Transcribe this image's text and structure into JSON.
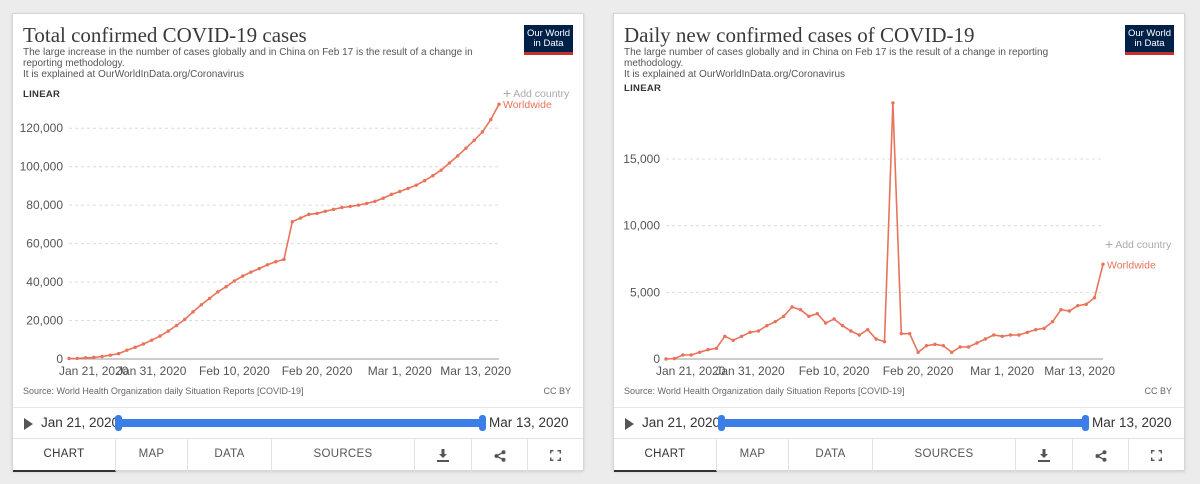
{
  "colors": {
    "line": "#e8735a",
    "accent": "#3c7ee8",
    "logo_bg": "#002147",
    "logo_bar": "#c8302e"
  },
  "logo": {
    "line1": "Our World",
    "line2": "in Data"
  },
  "left": {
    "title": "Total confirmed COVID-19 cases",
    "subtitle": "The large increase in the number of cases globally and in China on Feb 17 is the result of a change in reporting methodology.",
    "subtitle2": "It is explained at OurWorldInData.org/Coronavirus",
    "scale": "LINEAR",
    "add_country": "Add country",
    "source": "Source: World Health Organization daily Situation Reports [COVID-19]",
    "license": "CC BY",
    "timeline": {
      "start": "Jan 21, 2020",
      "end": "Mar 13, 2020"
    },
    "tabs": [
      "CHART",
      "MAP",
      "DATA",
      "SOURCES"
    ],
    "icons": [
      "download-icon",
      "share-icon",
      "fullscreen-icon"
    ]
  },
  "right": {
    "title": "Daily new confirmed cases of COVID-19",
    "subtitle": "The large number of cases globally and in China on Feb 17 is the result of a change in reporting methodology.",
    "subtitle2": "It is explained at OurWorldInData.org/Coronavirus",
    "scale": "LINEAR",
    "add_country": "Add country",
    "source": "Source: World Health Organization daily Situation Reports [COVID-19]",
    "license": "CC BY",
    "timeline": {
      "start": "Jan 21, 2020",
      "end": "Mar 13, 2020"
    },
    "tabs": [
      "CHART",
      "MAP",
      "DATA",
      "SOURCES"
    ],
    "icons": [
      "download-icon",
      "share-icon",
      "fullscreen-icon"
    ]
  },
  "chart_data": [
    {
      "type": "line",
      "x_ticks": [
        "Jan 21, 2020",
        "Jan 31, 2020",
        "Feb 10, 2020",
        "Feb 20, 2020",
        "Mar 1, 2020",
        "Mar 13, 2020"
      ],
      "x_tick_days": [
        0,
        10,
        20,
        30,
        40,
        52
      ],
      "y_ticks": [
        0,
        20000,
        40000,
        60000,
        80000,
        100000,
        120000
      ],
      "y_tick_labels": [
        "0",
        "20,000",
        "40,000",
        "60,000",
        "80,000",
        "100,000",
        "120,000"
      ],
      "ylim": [
        0,
        130000
      ],
      "grid": true,
      "series": [
        {
          "name": "Worldwide",
          "x": [
            "Jan 21, 2020",
            "Jan 22, 2020",
            "Jan 23, 2020",
            "Jan 24, 2020",
            "Jan 25, 2020",
            "Jan 26, 2020",
            "Jan 27, 2020",
            "Jan 28, 2020",
            "Jan 29, 2020",
            "Jan 30, 2020",
            "Jan 31, 2020",
            "Feb 1, 2020",
            "Feb 2, 2020",
            "Feb 3, 2020",
            "Feb 4, 2020",
            "Feb 5, 2020",
            "Feb 6, 2020",
            "Feb 7, 2020",
            "Feb 8, 2020",
            "Feb 9, 2020",
            "Feb 10, 2020",
            "Feb 11, 2020",
            "Feb 12, 2020",
            "Feb 13, 2020",
            "Feb 14, 2020",
            "Feb 15, 2020",
            "Feb 16, 2020",
            "Feb 17, 2020",
            "Feb 18, 2020",
            "Feb 19, 2020",
            "Feb 20, 2020",
            "Feb 21, 2020",
            "Feb 22, 2020",
            "Feb 23, 2020",
            "Feb 24, 2020",
            "Feb 25, 2020",
            "Feb 26, 2020",
            "Feb 27, 2020",
            "Feb 28, 2020",
            "Feb 29, 2020",
            "Mar 1, 2020",
            "Mar 2, 2020",
            "Mar 3, 2020",
            "Mar 4, 2020",
            "Mar 5, 2020",
            "Mar 6, 2020",
            "Mar 7, 2020",
            "Mar 8, 2020",
            "Mar 9, 2020",
            "Mar 10, 2020",
            "Mar 11, 2020",
            "Mar 12, 2020",
            "Mar 13, 2020"
          ],
          "values": [
            280,
            310,
            580,
            850,
            1300,
            2000,
            2800,
            4600,
            6100,
            7800,
            9800,
            11900,
            14500,
            17400,
            20600,
            24500,
            28200,
            31500,
            34900,
            37600,
            40600,
            43100,
            45200,
            47000,
            49000,
            50600,
            51800,
            71400,
            73300,
            75200,
            75700,
            76800,
            77800,
            78800,
            79300,
            80000,
            80900,
            82000,
            83600,
            85600,
            87100,
            88700,
            90400,
            92700,
            95300,
            98200,
            101900,
            105600,
            109600,
            113700,
            118100,
            124500,
            132500
          ]
        }
      ]
    },
    {
      "type": "line",
      "x_ticks": [
        "Jan 21, 2020",
        "Jan 31, 2020",
        "Feb 10, 2020",
        "Feb 20, 2020",
        "Mar 1, 2020",
        "Mar 13, 2020"
      ],
      "x_tick_days": [
        0,
        10,
        20,
        30,
        40,
        52
      ],
      "y_ticks": [
        0,
        5000,
        10000,
        15000
      ],
      "y_tick_labels": [
        "0",
        "5,000",
        "10,000",
        "15,000"
      ],
      "ylim": [
        0,
        19500
      ],
      "grid": true,
      "series": [
        {
          "name": "Worldwide",
          "x": [
            "Jan 21, 2020",
            "Jan 22, 2020",
            "Jan 23, 2020",
            "Jan 24, 2020",
            "Jan 25, 2020",
            "Jan 26, 2020",
            "Jan 27, 2020",
            "Jan 28, 2020",
            "Jan 29, 2020",
            "Jan 30, 2020",
            "Jan 31, 2020",
            "Feb 1, 2020",
            "Feb 2, 2020",
            "Feb 3, 2020",
            "Feb 4, 2020",
            "Feb 5, 2020",
            "Feb 6, 2020",
            "Feb 7, 2020",
            "Feb 8, 2020",
            "Feb 9, 2020",
            "Feb 10, 2020",
            "Feb 11, 2020",
            "Feb 12, 2020",
            "Feb 13, 2020",
            "Feb 14, 2020",
            "Feb 15, 2020",
            "Feb 16, 2020",
            "Feb 17, 2020",
            "Feb 18, 2020",
            "Feb 19, 2020",
            "Feb 20, 2020",
            "Feb 21, 2020",
            "Feb 22, 2020",
            "Feb 23, 2020",
            "Feb 24, 2020",
            "Feb 25, 2020",
            "Feb 26, 2020",
            "Feb 27, 2020",
            "Feb 28, 2020",
            "Feb 29, 2020",
            "Mar 1, 2020",
            "Mar 2, 2020",
            "Mar 3, 2020",
            "Mar 4, 2020",
            "Mar 5, 2020",
            "Mar 6, 2020",
            "Mar 7, 2020",
            "Mar 8, 2020",
            "Mar 9, 2020",
            "Mar 10, 2020",
            "Mar 11, 2020",
            "Mar 12, 2020",
            "Mar 13, 2020"
          ],
          "values": [
            0,
            30,
            300,
            300,
            500,
            700,
            800,
            1700,
            1400,
            1700,
            2000,
            2100,
            2500,
            2800,
            3200,
            3900,
            3700,
            3200,
            3400,
            2700,
            3000,
            2500,
            2100,
            1800,
            2200,
            1500,
            1300,
            19200,
            1900,
            1900,
            500,
            1000,
            1100,
            1000,
            500,
            900,
            900,
            1200,
            1500,
            1800,
            1700,
            1800,
            1800,
            2000,
            2200,
            2300,
            2800,
            3700,
            3600,
            4000,
            4100,
            4600,
            7100
          ]
        }
      ]
    }
  ]
}
